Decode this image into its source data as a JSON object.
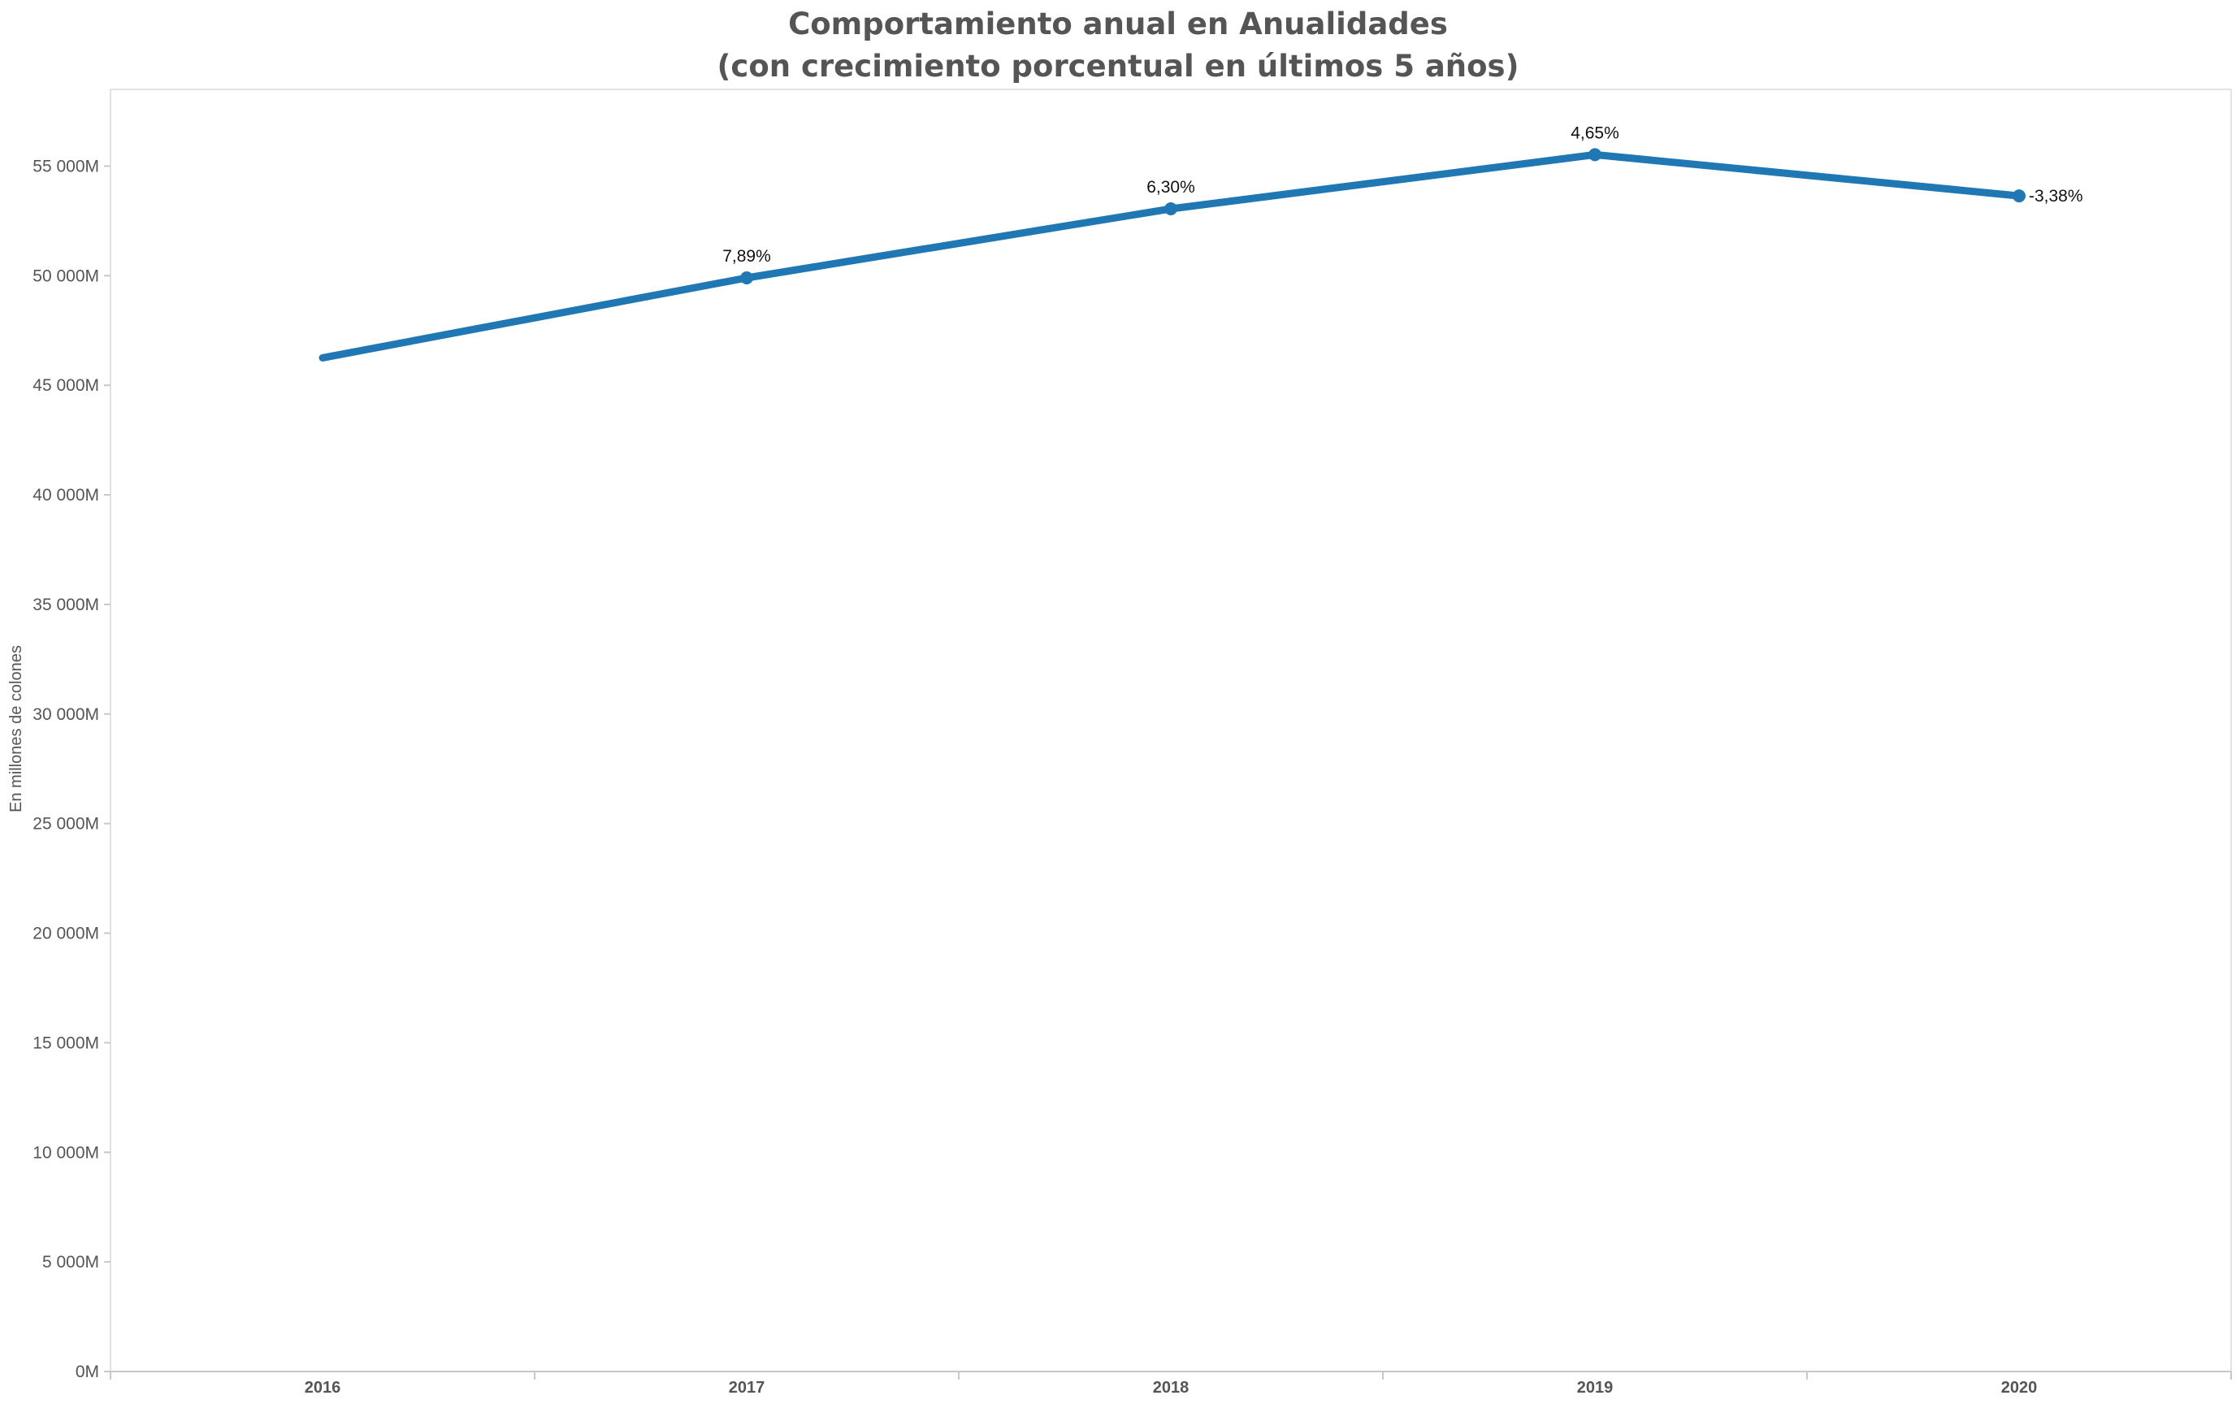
{
  "chart_data": {
    "type": "line",
    "title": "Comportamiento anual en Anualidades",
    "subtitle": "(con crecimiento porcentual en últimos 5 años)",
    "ylabel": "En millones de colones",
    "xlabel": "",
    "categories": [
      "2016",
      "2017",
      "2018",
      "2019",
      "2020"
    ],
    "series": [
      {
        "values": [
          46250,
          49900,
          53050,
          55520,
          53640
        ],
        "labels": [
          "",
          "7,89%",
          "6,30%",
          "4,65%",
          "-3,38%"
        ]
      }
    ],
    "ylim": [
      0,
      58500
    ],
    "yticks": [
      0,
      5000,
      10000,
      15000,
      20000,
      25000,
      30000,
      35000,
      40000,
      45000,
      50000,
      55000
    ],
    "ytick_labels": [
      "0M",
      "5 000M",
      "10 000M",
      "15 000M",
      "20 000M",
      "25 000M",
      "30 000M",
      "35 000M",
      "40 000M",
      "45 000M",
      "50 000M",
      "55 000M"
    ],
    "grid": false,
    "legend": "none",
    "line_color": "#1f77b4"
  }
}
